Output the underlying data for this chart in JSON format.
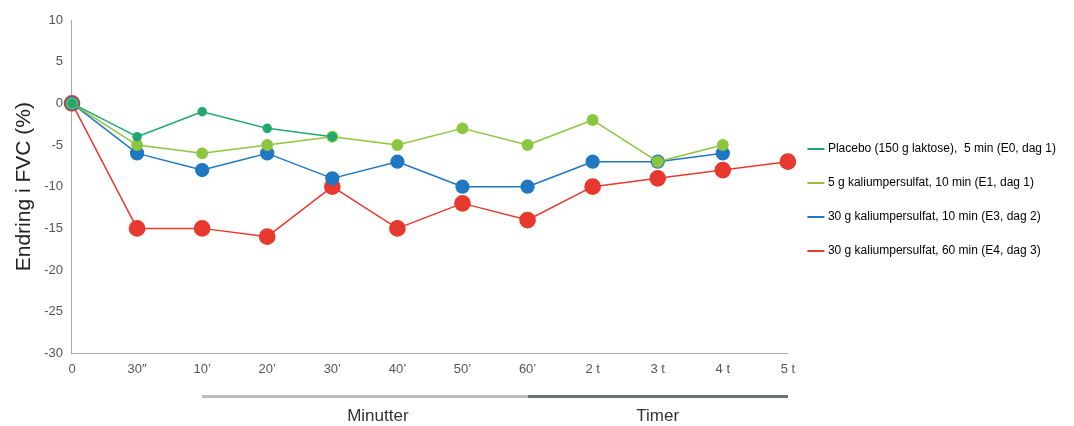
{
  "chart_data": {
    "type": "line",
    "ylabel": "Endring i FVC (%)",
    "categories": [
      "0",
      "30″",
      "10’",
      "20’",
      "30’",
      "40’",
      "50’",
      "60’",
      "2 t",
      "3 t",
      "4 t",
      "5 t"
    ],
    "ylim": [
      -30,
      10
    ],
    "yticks": [
      -30,
      -25,
      -20,
      -15,
      -10,
      -5,
      0,
      5,
      10
    ],
    "grid": false,
    "legend": "right",
    "marker": "circle",
    "line_style": "solid",
    "annotations": [
      "Minutter",
      "Timer"
    ],
    "series": [
      {
        "name": "Placebo (150 g laktose),  5 min (E0, dag 1)",
        "color": "#22a86e",
        "values": [
          0,
          -4,
          -1,
          -3,
          -4,
          null,
          null,
          null,
          null,
          null,
          null,
          null
        ]
      },
      {
        "name": "5 g kaliumpersulfat, 10 min (E1, dag 1)",
        "color": "#8cc63f",
        "values": [
          0,
          -5,
          -6,
          -5,
          -4,
          -5,
          -3,
          -5,
          -2,
          -7,
          -5,
          null
        ]
      },
      {
        "name": "30 g kaliumpersulfat, 10 min (E3, dag 2)",
        "color": "#1f78c1",
        "values": [
          0,
          -6,
          -8,
          -6,
          -9,
          -7,
          -10,
          -10,
          -7,
          -7,
          -6,
          null
        ]
      },
      {
        "name": "30 g kaliumpersulfat, 60 min (E4, dag 3)",
        "color": "#e8392f",
        "values": [
          0,
          -15,
          -15,
          -16,
          -10,
          -15,
          -12,
          -14,
          -10,
          -9,
          -8,
          -7
        ]
      }
    ]
  }
}
